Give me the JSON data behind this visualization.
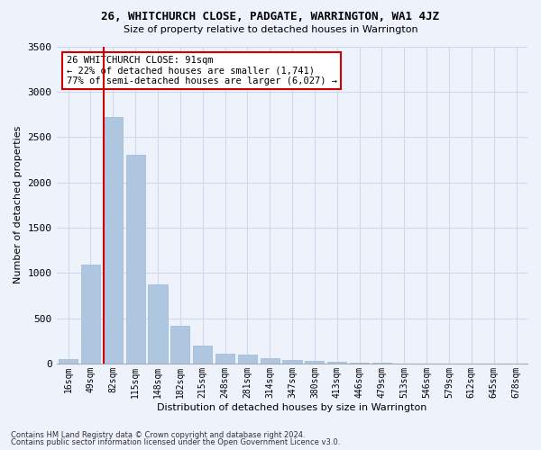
{
  "title": "26, WHITCHURCH CLOSE, PADGATE, WARRINGTON, WA1 4JZ",
  "subtitle": "Size of property relative to detached houses in Warrington",
  "xlabel": "Distribution of detached houses by size in Warrington",
  "ylabel": "Number of detached properties",
  "footnote1": "Contains HM Land Registry data © Crown copyright and database right 2024.",
  "footnote2": "Contains public sector information licensed under the Open Government Licence v3.0.",
  "annotation_line1": "26 WHITCHURCH CLOSE: 91sqm",
  "annotation_line2": "← 22% of detached houses are smaller (1,741)",
  "annotation_line3": "77% of semi-detached houses are larger (6,027) →",
  "bar_labels": [
    "16sqm",
    "49sqm",
    "82sqm",
    "115sqm",
    "148sqm",
    "182sqm",
    "215sqm",
    "248sqm",
    "281sqm",
    "314sqm",
    "347sqm",
    "380sqm",
    "413sqm",
    "446sqm",
    "479sqm",
    "513sqm",
    "546sqm",
    "579sqm",
    "612sqm",
    "645sqm",
    "678sqm"
  ],
  "bar_values": [
    50,
    1090,
    2720,
    2300,
    870,
    420,
    200,
    110,
    100,
    60,
    40,
    30,
    20,
    5,
    5,
    3,
    2,
    2,
    2,
    2,
    2
  ],
  "bar_color": "#aec6e0",
  "bar_edge_color": "#9ab8d8",
  "grid_color": "#d0d8ee",
  "background_color": "#eef2fb",
  "annotation_box_color": "#ffffff",
  "annotation_box_edge": "#cc0000",
  "red_line_color": "#cc0000",
  "red_line_xindex": 2,
  "ylim": [
    0,
    3500
  ],
  "yticks": [
    0,
    500,
    1000,
    1500,
    2000,
    2500,
    3000,
    3500
  ]
}
